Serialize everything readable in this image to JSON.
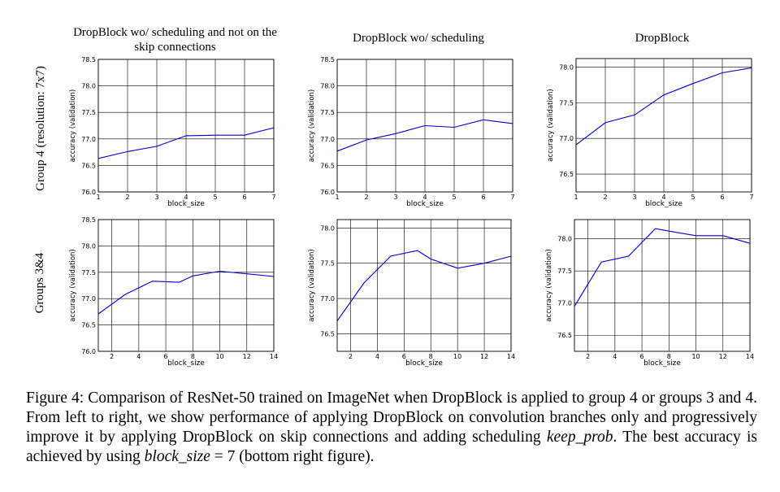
{
  "column_titles": [
    "DropBlock wo/ scheduling and not on the skip connections",
    "DropBlock wo/ scheduling",
    "DropBlock"
  ],
  "row_labels": [
    "Group 4 (resolution: 7x7)",
    "Groups 3&4"
  ],
  "caption": {
    "part1": "Figure 4: Comparison of ResNet-50 trained on ImageNet when DropBlock is applied to group 4 or groups 3 and 4. From left to right, we show performance of applying DropBlock on convolution branches only and progressively improve it by applying DropBlock on skip connections and adding scheduling ",
    "italic1": "keep_prob",
    "part2": ". The best accuracy is achieved by using ",
    "italic2": "block_size",
    "part3": " = 7 (bottom right figure)."
  },
  "chart_data": [
    {
      "type": "line",
      "xlabel": "block_size",
      "ylabel": "accuracy (validation)",
      "x": [
        1,
        2,
        3,
        4,
        5,
        6,
        7
      ],
      "y": [
        76.63,
        76.76,
        76.86,
        77.06,
        77.07,
        77.07,
        77.21
      ],
      "xlim": [
        1,
        7
      ],
      "ylim": [
        76.0,
        78.5
      ],
      "xticks": [
        1,
        2,
        3,
        4,
        5,
        6,
        7
      ],
      "yticks": [
        "76.0",
        "76.5",
        "77.0",
        "77.5",
        "78.0",
        "78.5"
      ],
      "grid": true,
      "color": "#0000cc"
    },
    {
      "type": "line",
      "xlabel": "block_size",
      "ylabel": "accuracy (validation)",
      "x": [
        1,
        2,
        3,
        4,
        5,
        6,
        7
      ],
      "y": [
        76.77,
        76.98,
        77.1,
        77.25,
        77.22,
        77.36,
        77.29
      ],
      "xlim": [
        1,
        7
      ],
      "ylim": [
        76.0,
        78.5
      ],
      "xticks": [
        1,
        2,
        3,
        4,
        5,
        6,
        7
      ],
      "yticks": [
        "76.0",
        "76.5",
        "77.0",
        "77.5",
        "78.0",
        "78.5"
      ],
      "grid": true,
      "color": "#0000cc"
    },
    {
      "type": "line",
      "xlabel": "block_size",
      "ylabel": "accuracy (validation)",
      "x": [
        1,
        2,
        3,
        4,
        5,
        6,
        7
      ],
      "y": [
        76.91,
        77.22,
        77.33,
        77.61,
        77.77,
        77.92,
        77.99
      ],
      "xlim": [
        1,
        7
      ],
      "ylim": [
        76.25,
        78.12
      ],
      "xticks": [
        1,
        2,
        3,
        4,
        5,
        6,
        7
      ],
      "yticks": [
        "76.5",
        "77.0",
        "77.5",
        "78.0"
      ],
      "grid": true,
      "color": "#0000cc"
    },
    {
      "type": "line",
      "xlabel": "block_size",
      "ylabel": "accuracy (validation)",
      "x": [
        1,
        3,
        5,
        7,
        8,
        10,
        12,
        14
      ],
      "y": [
        76.71,
        77.08,
        77.33,
        77.31,
        77.43,
        77.52,
        77.47,
        77.42
      ],
      "xlim": [
        1,
        14
      ],
      "ylim": [
        76.0,
        78.5
      ],
      "xticks": [
        2,
        4,
        6,
        8,
        10,
        12,
        14
      ],
      "yticks": [
        "76.0",
        "76.5",
        "77.0",
        "77.5",
        "78.0",
        "78.5"
      ],
      "grid": true,
      "color": "#0000cc"
    },
    {
      "type": "line",
      "xlabel": "block_size",
      "ylabel": "accuracy (validation)",
      "x": [
        1,
        3,
        5,
        7,
        8,
        10,
        12,
        14
      ],
      "y": [
        76.68,
        77.22,
        77.6,
        77.68,
        77.56,
        77.43,
        77.5,
        77.6
      ],
      "xlim": [
        1,
        14
      ],
      "ylim": [
        76.25,
        78.12
      ],
      "xticks": [
        2,
        4,
        6,
        8,
        10,
        12,
        14
      ],
      "yticks": [
        "76.5",
        "77.0",
        "77.5",
        "78.0"
      ],
      "grid": true,
      "color": "#0000cc"
    },
    {
      "type": "line",
      "xlabel": "block_size",
      "ylabel": "accuracy (validation)",
      "x": [
        1,
        3,
        5,
        7,
        8,
        10,
        12,
        14
      ],
      "y": [
        76.95,
        77.64,
        77.73,
        78.16,
        78.12,
        78.05,
        78.05,
        77.93
      ],
      "xlim": [
        1,
        14
      ],
      "ylim": [
        76.25,
        78.3
      ],
      "xticks": [
        2,
        4,
        6,
        8,
        10,
        12,
        14
      ],
      "yticks": [
        "76.5",
        "77.0",
        "77.5",
        "78.0"
      ],
      "grid": true,
      "color": "#0000cc"
    }
  ]
}
